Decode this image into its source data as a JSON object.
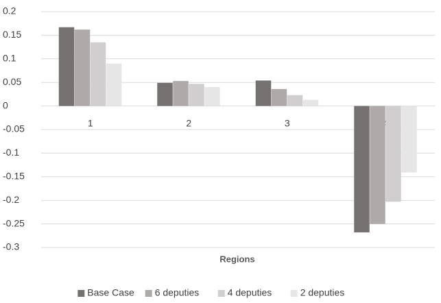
{
  "chart_data": {
    "type": "bar",
    "x_label": "Regions",
    "categories": [
      "1",
      "2",
      "3",
      "4"
    ],
    "series": [
      {
        "name": "Base Case",
        "color": "#767171",
        "values": [
          0.167,
          0.049,
          0.054,
          -0.268
        ]
      },
      {
        "name": "6 deputies",
        "color": "#aeaaaa",
        "values": [
          0.162,
          0.053,
          0.036,
          -0.25
        ]
      },
      {
        "name": "4 deputies",
        "color": "#d0cece",
        "values": [
          0.135,
          0.047,
          0.023,
          -0.203
        ]
      },
      {
        "name": "2 deputies",
        "color": "#e7e6e6",
        "values": [
          0.09,
          0.04,
          0.013,
          -0.141
        ]
      }
    ],
    "ylim": [
      -0.3,
      0.2
    ],
    "yticks": [
      -0.3,
      -0.25,
      -0.2,
      -0.15,
      -0.1,
      -0.05,
      0,
      0.05,
      0.1,
      0.15,
      0.2
    ],
    "grid": true,
    "legend": "bottom"
  }
}
